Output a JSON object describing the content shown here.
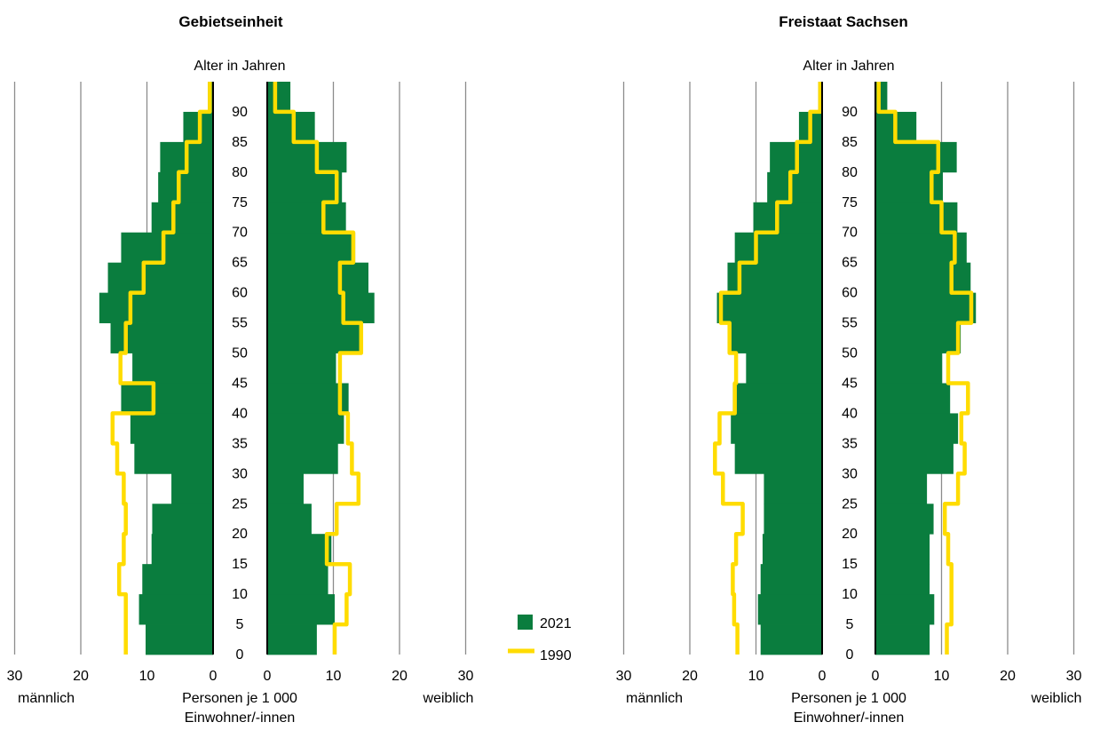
{
  "legend": {
    "items": [
      {
        "label": "2021",
        "color": "#0a7d3e",
        "kind": "bar"
      },
      {
        "label": "1990",
        "color": "#ffdc00",
        "kind": "line"
      }
    ]
  },
  "chart_data": [
    {
      "type": "population-pyramid",
      "title": "Gebietseinheit",
      "age_axis_label": "Alter in Jahren",
      "x_axis_label_line1": "Personen je 1 000",
      "x_axis_label_line2": "Einwohner/-innen",
      "left_label": "männlich",
      "right_label": "weiblich",
      "x_ticks": [
        30,
        20,
        10,
        0
      ],
      "age_ticks": [
        0,
        5,
        10,
        15,
        20,
        25,
        30,
        35,
        40,
        45,
        50,
        55,
        60,
        65,
        70,
        75,
        80,
        85,
        90
      ],
      "xlim": [
        0,
        30
      ],
      "age_groups_start": [
        0,
        5,
        10,
        15,
        20,
        25,
        30,
        35,
        40,
        45,
        50,
        55,
        60,
        65,
        70,
        75,
        80,
        85,
        90
      ],
      "series": [
        {
          "name": "2021",
          "sex": "male",
          "values": [
            10.2,
            11.2,
            10.7,
            9.3,
            9.2,
            6.3,
            11.9,
            12.5,
            13.9,
            12.2,
            15.5,
            17.2,
            15.9,
            13.9,
            9.3,
            8.3,
            8.0,
            4.5,
            0.8
          ]
        },
        {
          "name": "2021",
          "sex": "female",
          "values": [
            7.5,
            10.2,
            9.2,
            9.7,
            6.7,
            5.5,
            10.7,
            11.6,
            12.3,
            10.4,
            14.2,
            16.2,
            15.3,
            13.3,
            11.9,
            11.3,
            12.0,
            7.2,
            3.5
          ]
        },
        {
          "name": "1990",
          "sex": "male",
          "values": [
            13.2,
            13.2,
            14.2,
            13.5,
            13.2,
            13.5,
            14.5,
            15.2,
            9.0,
            14.0,
            13.2,
            12.5,
            10.5,
            7.5,
            6.0,
            5.2,
            4.0,
            2.0,
            0.5
          ]
        },
        {
          "name": "1990",
          "sex": "female",
          "values": [
            10.2,
            12.0,
            12.5,
            9.0,
            10.5,
            13.8,
            12.8,
            12.2,
            11.0,
            11.0,
            14.2,
            11.5,
            11.0,
            13.0,
            8.5,
            10.5,
            7.5,
            4.0,
            1.2
          ]
        }
      ]
    },
    {
      "type": "population-pyramid",
      "title": "Freistaat Sachsen",
      "age_axis_label": "Alter in Jahren",
      "x_axis_label_line1": "Personen je 1 000",
      "x_axis_label_line2": "Einwohner/-innen",
      "left_label": "männlich",
      "right_label": "weiblich",
      "x_ticks": [
        30,
        20,
        10,
        0
      ],
      "age_ticks": [
        0,
        5,
        10,
        15,
        20,
        25,
        30,
        35,
        40,
        45,
        50,
        55,
        60,
        65,
        70,
        75,
        80,
        85,
        90
      ],
      "xlim": [
        0,
        30
      ],
      "age_groups_start": [
        0,
        5,
        10,
        15,
        20,
        25,
        30,
        35,
        40,
        45,
        50,
        55,
        60,
        65,
        70,
        75,
        80,
        85,
        90
      ],
      "series": [
        {
          "name": "2021",
          "sex": "male",
          "values": [
            9.3,
            9.7,
            9.3,
            9.0,
            8.8,
            8.8,
            13.2,
            13.8,
            13.5,
            11.5,
            14.0,
            15.9,
            14.3,
            13.2,
            10.4,
            8.3,
            7.9,
            3.5,
            0.6
          ]
        },
        {
          "name": "2021",
          "sex": "female",
          "values": [
            8.2,
            8.9,
            8.2,
            8.2,
            8.8,
            7.8,
            11.8,
            12.5,
            11.3,
            10.1,
            12.9,
            15.2,
            14.4,
            13.8,
            12.4,
            10.2,
            12.3,
            6.2,
            1.8
          ]
        },
        {
          "name": "1990",
          "sex": "male",
          "values": [
            12.8,
            13.3,
            13.5,
            13.0,
            12.0,
            15.0,
            16.2,
            15.5,
            13.2,
            13.0,
            14.0,
            15.3,
            12.5,
            10.0,
            6.8,
            4.8,
            3.8,
            1.8,
            0.3
          ]
        },
        {
          "name": "1990",
          "sex": "female",
          "values": [
            10.8,
            11.5,
            11.5,
            11.0,
            10.5,
            12.5,
            13.5,
            13.0,
            14.0,
            11.0,
            12.5,
            14.5,
            11.5,
            12.0,
            10.0,
            8.5,
            9.5,
            3.0,
            0.5
          ]
        }
      ]
    }
  ]
}
